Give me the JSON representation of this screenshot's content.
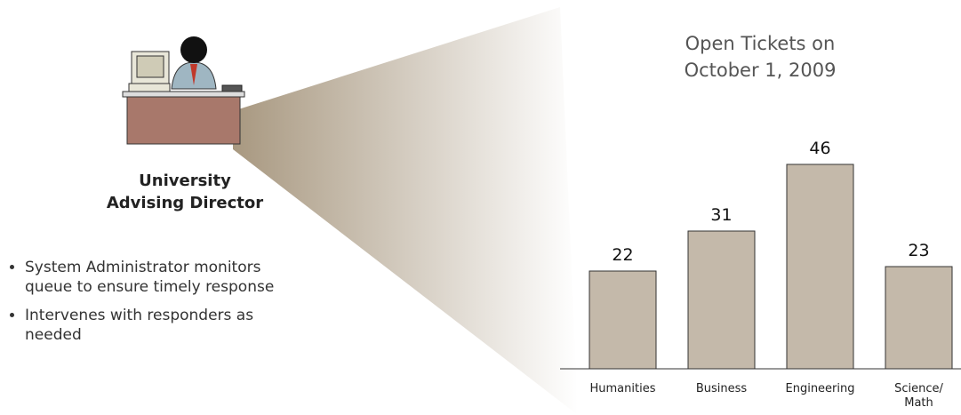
{
  "caption": [
    "University",
    "Advising Director"
  ],
  "bullets": [
    "System Administrator monitors queue to ensure timely response",
    "Intervenes with responders as needed"
  ],
  "chart_data": {
    "type": "bar",
    "title": "Open Tickets on October 1, 2009",
    "categories": [
      "Humanities",
      "Business",
      "Engineering",
      "Science/ Math"
    ],
    "values": [
      22,
      31,
      46,
      23
    ],
    "color": "#c4b9aa"
  }
}
